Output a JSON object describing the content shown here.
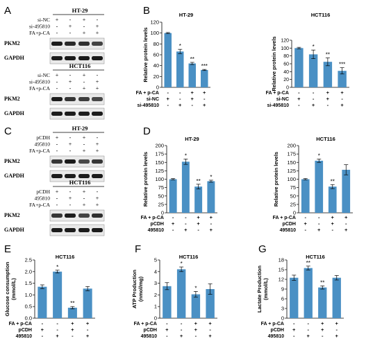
{
  "figure": {
    "panel_letters": [
      "A",
      "B",
      "C",
      "D",
      "E",
      "F",
      "G"
    ],
    "blots": [
      {
        "panel": "A",
        "cell_line": "HT-29",
        "rows": [
          "si-NC",
          "si-495810",
          "FA+p-CA"
        ],
        "signs": [
          [
            "+",
            "-",
            "+",
            "-"
          ],
          [
            "-",
            "+",
            "-",
            "+"
          ],
          [
            "-",
            "-",
            "+",
            "+"
          ]
        ],
        "bands": [
          "PKM2",
          "GAPDH"
        ]
      },
      {
        "panel": "A",
        "cell_line": "HCT116",
        "rows": [
          "si-NC",
          "si-495810",
          "FA+p-CA"
        ],
        "signs": [
          [
            "+",
            "-",
            "+",
            "-"
          ],
          [
            "-",
            "+",
            "-",
            "+"
          ],
          [
            "-",
            "-",
            "+",
            "+"
          ]
        ],
        "bands": [
          "PKM2",
          "GAPDH"
        ]
      },
      {
        "panel": "C",
        "cell_line": "HT-29",
        "rows": [
          "pCDH",
          "495810",
          "FA+p-CA"
        ],
        "signs": [
          [
            "+",
            "-",
            "+",
            "-"
          ],
          [
            "-",
            "+",
            "-",
            "+"
          ],
          [
            "-",
            "-",
            "+",
            "+"
          ]
        ],
        "bands": [
          "PKM2",
          "GAPDH"
        ]
      },
      {
        "panel": "C",
        "cell_line": "HCT116",
        "rows": [
          "pCDH",
          "495810",
          "FA+p-CA"
        ],
        "signs": [
          [
            "+",
            "-",
            "+",
            "-"
          ],
          [
            "-",
            "+",
            "-",
            "+"
          ],
          [
            "-",
            "-",
            "+",
            "+"
          ]
        ],
        "bands": [
          "PKM2",
          "GAPDH"
        ]
      }
    ],
    "bar_color": "#4a90c4"
  },
  "chart_data": [
    {
      "panel": "B",
      "type": "bar",
      "title": "HT-29",
      "ylabel": "Relative protein levels",
      "ylim": [
        0,
        120
      ],
      "yticks": [
        0,
        20,
        40,
        60,
        80,
        100,
        120
      ],
      "values": [
        100,
        66,
        44,
        32
      ],
      "errors": [
        1,
        4,
        2,
        1
      ],
      "significance": [
        "",
        "*",
        "**",
        "***"
      ],
      "conditions": [
        {
          "label": "FA + p-CA",
          "signs": [
            "-",
            "-",
            "+",
            "+"
          ]
        },
        {
          "label": "si-NC",
          "signs": [
            "+",
            "-",
            "+",
            "-"
          ]
        },
        {
          "label": "si-495810",
          "signs": [
            "-",
            "+",
            "-",
            "+"
          ]
        }
      ]
    },
    {
      "panel": "B",
      "type": "bar",
      "title": "HCT116",
      "ylabel": "Relative protein levels",
      "ylim": [
        0,
        120
      ],
      "yticks": [
        0,
        20,
        40,
        60,
        80,
        100,
        120
      ],
      "values": [
        100,
        84,
        65,
        42
      ],
      "errors": [
        2,
        11,
        10,
        8
      ],
      "significance": [
        "",
        "*",
        "**",
        "***"
      ],
      "conditions": [
        {
          "label": "FA + p-CA",
          "signs": [
            "-",
            "-",
            "+",
            "+"
          ]
        },
        {
          "label": "si-NC",
          "signs": [
            "+",
            "-",
            "+",
            "-"
          ]
        },
        {
          "label": "si-495810",
          "signs": [
            "-",
            "+",
            "-",
            "+"
          ]
        }
      ]
    },
    {
      "panel": "D",
      "type": "bar",
      "title": "HT-29",
      "ylabel": "Relative protein levels",
      "ylim": [
        0,
        200
      ],
      "yticks": [
        0,
        25,
        50,
        75,
        100,
        125,
        150,
        175,
        200
      ],
      "values": [
        100,
        152,
        78,
        94
      ],
      "errors": [
        2,
        8,
        7,
        3
      ],
      "significance": [
        "",
        "*",
        "**",
        "*"
      ],
      "conditions": [
        {
          "label": "FA + p-CA",
          "signs": [
            "-",
            "-",
            "+",
            "+"
          ]
        },
        {
          "label": "pCDH",
          "signs": [
            "+",
            "-",
            "+",
            "-"
          ]
        },
        {
          "label": "495810",
          "signs": [
            "-",
            "+",
            "-",
            "+"
          ]
        }
      ]
    },
    {
      "panel": "D",
      "type": "bar",
      "title": "HCT116",
      "ylabel": "Relative protein levels",
      "ylim": [
        0,
        200
      ],
      "yticks": [
        0,
        25,
        50,
        75,
        100,
        125,
        150,
        175,
        200
      ],
      "values": [
        100,
        155,
        78,
        128
      ],
      "errors": [
        2,
        5,
        6,
        15
      ],
      "significance": [
        "",
        "*",
        "**",
        ""
      ],
      "conditions": [
        {
          "label": "FA + p-CA",
          "signs": [
            "-",
            "-",
            "+",
            "+"
          ]
        },
        {
          "label": "pCDH",
          "signs": [
            "+",
            "-",
            "+",
            "-"
          ]
        },
        {
          "label": "495810",
          "signs": [
            "-",
            "+",
            "-",
            "+"
          ]
        }
      ]
    },
    {
      "panel": "E",
      "type": "bar",
      "title": "HCT116",
      "ylabel": "Glucose consumption\n(mmol/L)",
      "ylim": [
        0,
        2.5
      ],
      "yticks": [
        "0.0",
        "0.5",
        "1.0",
        "1.5",
        "2.0",
        "2.5"
      ],
      "values": [
        1.35,
        2.0,
        0.45,
        1.27
      ],
      "errors": [
        0.08,
        0.06,
        0.05,
        0.09
      ],
      "significance": [
        "",
        "*",
        "**",
        ""
      ],
      "conditions": [
        {
          "label": "FA + p-CA",
          "signs": [
            "-",
            "-",
            "+",
            "+"
          ]
        },
        {
          "label": "pCDH",
          "signs": [
            "+",
            "-",
            "+",
            "-"
          ]
        },
        {
          "label": "495810",
          "signs": [
            "-",
            "+",
            "-",
            "+"
          ]
        }
      ]
    },
    {
      "panel": "F",
      "type": "bar",
      "title": "HCT116",
      "ylabel": "ATP Production\n(nmol/mg)",
      "ylim": [
        0,
        5
      ],
      "yticks": [
        "0",
        "1",
        "2",
        "3",
        "4",
        "5"
      ],
      "values": [
        2.75,
        4.2,
        2.05,
        2.5
      ],
      "errors": [
        0.3,
        0.2,
        0.25,
        0.45
      ],
      "significance": [
        "",
        "*",
        "*",
        ""
      ],
      "conditions": [
        {
          "label": "FA + p-CA",
          "signs": [
            "-",
            "-",
            "+",
            "+"
          ]
        },
        {
          "label": "pCDH",
          "signs": [
            "+",
            "-",
            "+",
            "-"
          ]
        },
        {
          "label": "495810",
          "signs": [
            "-",
            "+",
            "-",
            "+"
          ]
        }
      ]
    },
    {
      "panel": "G",
      "type": "bar",
      "title": "HCT116",
      "ylabel": "Lactate Production\n(mmol/L)",
      "ylim": [
        0,
        18
      ],
      "yticks": [
        "0",
        "3",
        "6",
        "9",
        "12",
        "15",
        "18"
      ],
      "values": [
        12.5,
        15.5,
        9.5,
        12.5
      ],
      "errors": [
        0.8,
        0.6,
        0.5,
        0.7
      ],
      "significance": [
        "",
        "**",
        "**",
        ""
      ],
      "conditions": [
        {
          "label": "FA + p-CA",
          "signs": [
            "-",
            "-",
            "+",
            "+"
          ]
        },
        {
          "label": "pCDH",
          "signs": [
            "+",
            "-",
            "+",
            "-"
          ]
        },
        {
          "label": "495810",
          "signs": [
            "-",
            "+",
            "-",
            "+"
          ]
        }
      ]
    }
  ]
}
